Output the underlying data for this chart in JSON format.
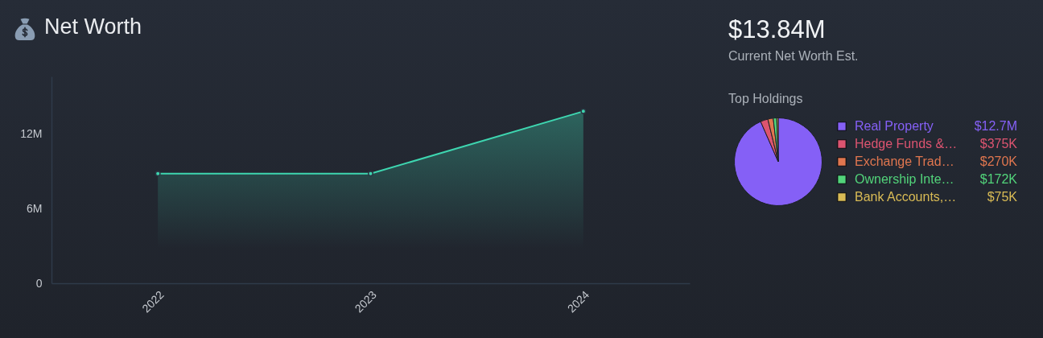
{
  "chart_data": [
    {
      "type": "area",
      "title": "Net Worth",
      "categories": [
        "2022",
        "2023",
        "2024"
      ],
      "series": [
        {
          "color": "#3ed6b0",
          "values": [
            8.8,
            8.8,
            13.8
          ]
        }
      ],
      "ylim": [
        0,
        16.6
      ],
      "yticks": [
        0,
        {
          "value": 6,
          "label": "6M"
        },
        {
          "value": 12,
          "label": "12M"
        }
      ],
      "marker": "circle"
    },
    {
      "type": "other",
      "title": "$13.84M",
      "subtitle": "Current Net Worth Est."
    },
    {
      "type": "pie",
      "title": "Top Holdings",
      "categories": [
        "Real Property",
        "Hedge Funds &…",
        "Exchange Trad…",
        "Ownership Inte…",
        "Bank Accounts,…"
      ],
      "values": [
        12700000,
        375000,
        270000,
        172000,
        75000
      ],
      "colors": [
        "#8560f6",
        "#dd5470",
        "#e0764f",
        "#52d47a",
        "#d9bb55"
      ],
      "value_labels": [
        "$12.7M",
        "$375K",
        "$270K",
        "$172K",
        "$75K"
      ],
      "legend": "right"
    }
  ]
}
